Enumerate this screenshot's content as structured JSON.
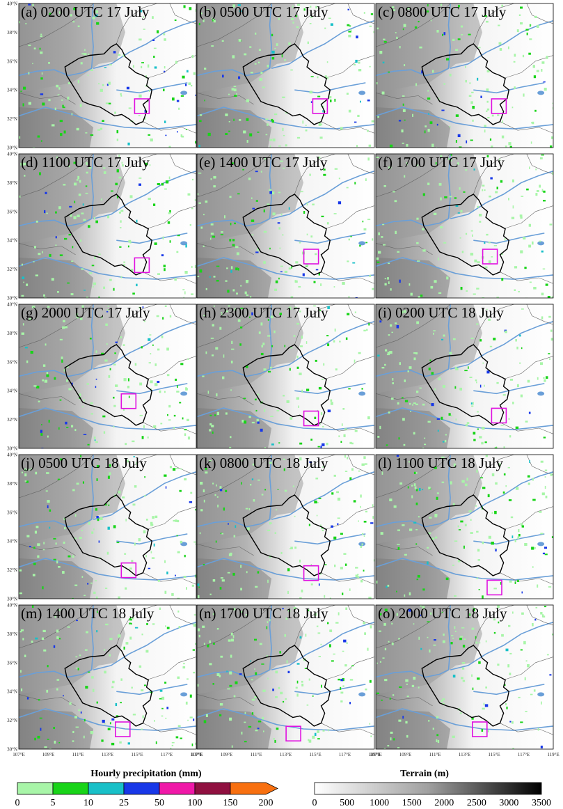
{
  "chart_data": {
    "type": "map-panels",
    "panels": [
      {
        "label": "(a) 0200 UTC 17 July",
        "box_lon": 115.3,
        "box_lat": 32.9
      },
      {
        "label": "(b) 0500 UTC 17 July",
        "box_lon": 115.3,
        "box_lat": 32.9
      },
      {
        "label": "(c) 0800 UTC 17 July",
        "box_lon": 115.3,
        "box_lat": 32.9
      },
      {
        "label": "(d) 1100 UTC 17 July",
        "box_lon": 115.3,
        "box_lat": 32.3
      },
      {
        "label": "(e) 1400 UTC 17 July",
        "box_lon": 114.7,
        "box_lat": 32.9
      },
      {
        "label": "(f) 1700 UTC 17 July",
        "box_lon": 114.7,
        "box_lat": 32.9
      },
      {
        "label": "(g) 2000 UTC 17 July",
        "box_lon": 114.4,
        "box_lat": 33.3
      },
      {
        "label": "(h) 2300 UTC 17 July",
        "box_lon": 114.7,
        "box_lat": 32.1
      },
      {
        "label": "(i) 0200 UTC 18 July",
        "box_lon": 115.3,
        "box_lat": 32.3
      },
      {
        "label": "(j) 0500 UTC 18 July",
        "box_lon": 114.4,
        "box_lat": 32.0
      },
      {
        "label": "(k) 0800 UTC 18 July",
        "box_lon": 114.7,
        "box_lat": 31.8
      },
      {
        "label": "(l) 1100 UTC 18 July",
        "box_lon": 115.0,
        "box_lat": 30.8
      },
      {
        "label": "(m) 1400 UTC 18 July",
        "box_lon": 114.0,
        "box_lat": 31.4
      },
      {
        "label": "(n) 1700 UTC 18 July",
        "box_lon": 113.5,
        "box_lat": 31.1
      },
      {
        "label": "(o) 2000 UTC 18 July",
        "box_lon": 114.0,
        "box_lat": 31.4
      }
    ],
    "xlim": [
      107,
      119
    ],
    "ylim": [
      30,
      40
    ],
    "x_ticks": [
      "107°E",
      "109°E",
      "111°E",
      "113°E",
      "115°E",
      "117°E",
      "119°E"
    ],
    "y_ticks": [
      "30°N",
      "32°N",
      "34°N",
      "36°N",
      "38°N",
      "40°N"
    ],
    "precip_colorbar": {
      "label": "Hourly precipitation (mm)",
      "ticks": [
        "0",
        "5",
        "10",
        "25",
        "50",
        "100",
        "150",
        "200"
      ],
      "colors": [
        "#a8f5a8",
        "#18d418",
        "#18c0c8",
        "#1838e8",
        "#f018a8",
        "#901040",
        "#f87010"
      ]
    },
    "terrain_colorbar": {
      "label": "Terrain (m)",
      "ticks": [
        "0",
        "500",
        "1000",
        "1500",
        "2000",
        "2500",
        "3000",
        "3500"
      ]
    },
    "colors": {
      "box": "#e010e0",
      "river": "#6a9fd8",
      "province": "#000000",
      "border": "#666666"
    }
  }
}
